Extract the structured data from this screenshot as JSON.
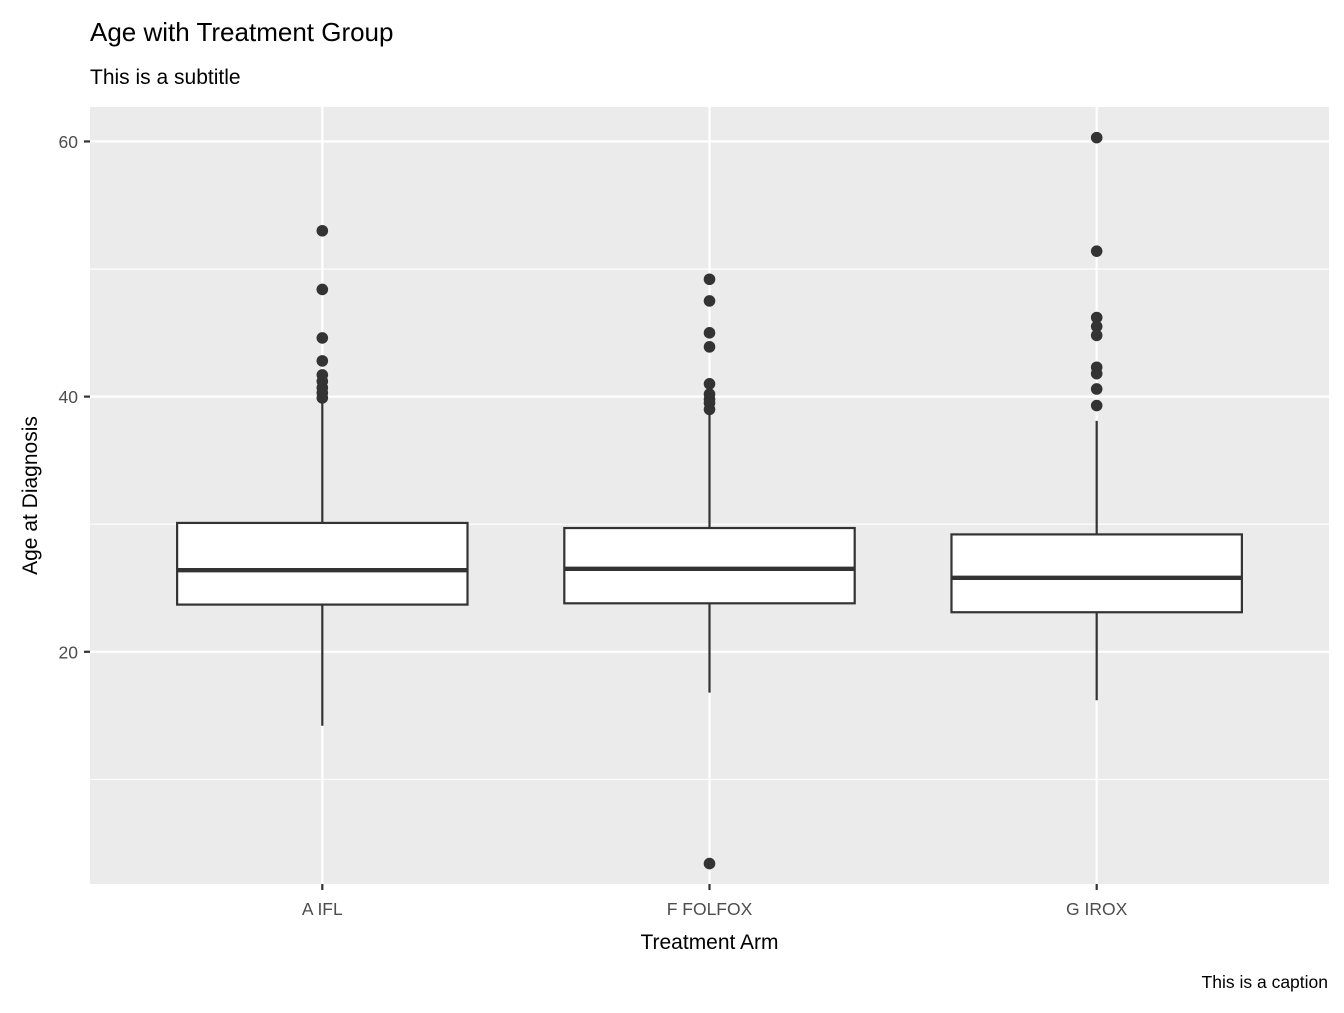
{
  "chart_data": {
    "type": "boxplot",
    "title": "Age with Treatment Group",
    "subtitle": "This is a subtitle",
    "caption": "This is a caption",
    "xlabel": "Treatment Arm",
    "ylabel": "Age at Diagnosis",
    "ylim": [
      1.8,
      62.7
    ],
    "y_ticks": [
      20,
      40,
      60
    ],
    "y_minor": [
      10,
      30,
      50
    ],
    "grid": true,
    "categories": [
      "A IFL",
      "F FOLFOX",
      "G IROX"
    ],
    "boxes": [
      {
        "category": "A IFL",
        "lower_whisker": 14.2,
        "q1": 23.7,
        "median": 26.4,
        "q3": 30.1,
        "upper_whisker": 39.8,
        "outliers": [
          53.0,
          48.4,
          44.6,
          42.8,
          41.7,
          41.2,
          40.7,
          40.3,
          39.9
        ]
      },
      {
        "category": "F FOLFOX",
        "lower_whisker": 16.8,
        "q1": 23.8,
        "median": 26.5,
        "q3": 29.7,
        "upper_whisker": 38.9,
        "outliers": [
          49.2,
          47.5,
          45.0,
          43.9,
          41.0,
          40.2,
          39.8,
          39.5,
          39.0,
          3.4
        ]
      },
      {
        "category": "G IROX",
        "lower_whisker": 16.2,
        "q1": 23.1,
        "median": 25.8,
        "q3": 29.2,
        "upper_whisker": 38.1,
        "outliers": [
          60.3,
          51.4,
          46.2,
          45.5,
          44.8,
          42.3,
          41.8,
          40.6,
          39.3
        ]
      }
    ]
  }
}
